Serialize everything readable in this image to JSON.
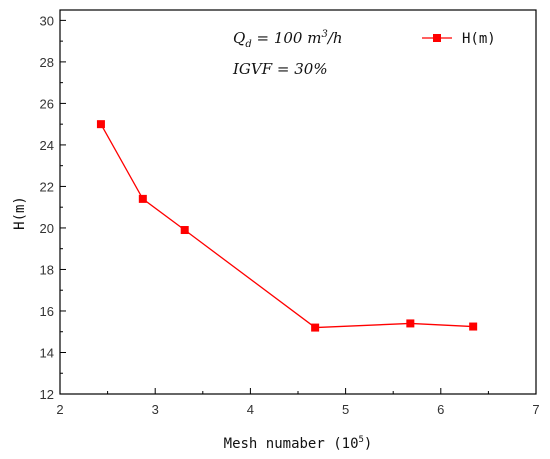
{
  "chart_data": {
    "type": "line",
    "x": [
      2.43,
      2.87,
      3.31,
      4.68,
      5.68,
      6.34
    ],
    "series": [
      {
        "name": "H(m)",
        "values": [
          25.0,
          21.4,
          19.9,
          15.2,
          15.4,
          15.25
        ],
        "color": "#ff0000",
        "marker": "square"
      }
    ],
    "xlim": [
      2,
      7
    ],
    "ylim": [
      12,
      30.5
    ],
    "xticks": [
      2,
      3,
      4,
      5,
      6,
      7
    ],
    "yticks": [
      12,
      14,
      16,
      18,
      20,
      22,
      24,
      26,
      28,
      30
    ],
    "xlabel": "Mesh numaber (10",
    "xlabel_sup": "5",
    "xlabel_close": ")",
    "ylabel": "H(m)",
    "annotations": [
      "Q_d = 100 m³/h",
      "IGVF = 30%"
    ],
    "legend": {
      "position": "top-right",
      "entries": [
        "H(m)"
      ]
    },
    "grid": false
  }
}
